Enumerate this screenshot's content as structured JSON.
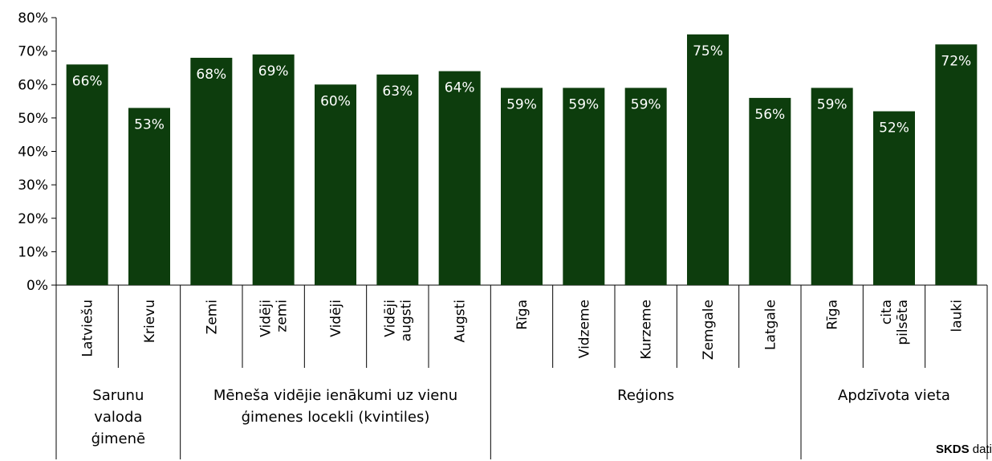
{
  "chart_data": {
    "type": "bar",
    "ylim": [
      0,
      80
    ],
    "yticks": [
      "0%",
      "10%",
      "20%",
      "30%",
      "40%",
      "50%",
      "60%",
      "70%",
      "80%"
    ],
    "bar_color": "#0d3d0d",
    "label_color": "#ffffff",
    "categories": [
      [
        "Latviešu"
      ],
      [
        "Krievu"
      ],
      [
        "Zemi"
      ],
      [
        "Vidēji",
        "zemi"
      ],
      [
        "Vidēji"
      ],
      [
        "Vidēji",
        "augsti"
      ],
      [
        "Augsti"
      ],
      [
        "Rīga"
      ],
      [
        "Vidzeme"
      ],
      [
        "Kurzeme"
      ],
      [
        "Zemgale"
      ],
      [
        "Latgale"
      ],
      [
        "Rīga"
      ],
      [
        "cita",
        "pilsēta"
      ],
      [
        "lauki"
      ]
    ],
    "values": [
      66,
      53,
      68,
      69,
      60,
      63,
      64,
      59,
      59,
      59,
      75,
      56,
      59,
      52,
      72
    ],
    "value_labels": [
      "66%",
      "53%",
      "68%",
      "69%",
      "60%",
      "63%",
      "64%",
      "59%",
      "59%",
      "59%",
      "75%",
      "56%",
      "59%",
      "52%",
      "72%"
    ],
    "groups": [
      {
        "label": [
          "Sarunu",
          "valoda",
          "ģimenē"
        ],
        "start": 0,
        "end": 1
      },
      {
        "label": [
          "Mēneša vidējie ienākumi uz vienu",
          "ģimenes locekli (kvintiles)"
        ],
        "start": 2,
        "end": 6
      },
      {
        "label": [
          "Reģions"
        ],
        "start": 7,
        "end": 11
      },
      {
        "label": [
          "Apdzīvota vieta"
        ],
        "start": 12,
        "end": 14
      }
    ]
  },
  "source": {
    "bold": "SKDS",
    "rest": " dati"
  }
}
